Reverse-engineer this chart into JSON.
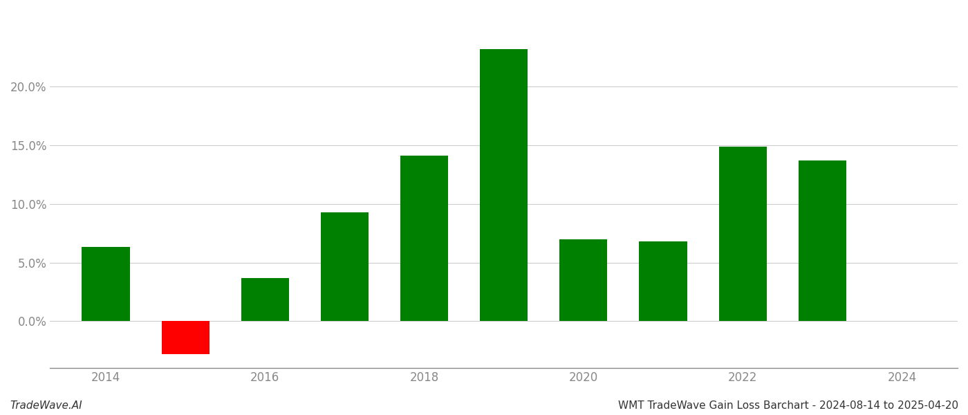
{
  "years": [
    2014,
    2015,
    2016,
    2017,
    2018,
    2019,
    2020,
    2021,
    2022,
    2023
  ],
  "values": [
    0.063,
    -0.028,
    0.037,
    0.093,
    0.141,
    0.232,
    0.07,
    0.068,
    0.149,
    0.137
  ],
  "colors": [
    "#008000",
    "#ff0000",
    "#008000",
    "#008000",
    "#008000",
    "#008000",
    "#008000",
    "#008000",
    "#008000",
    "#008000"
  ],
  "title": "WMT TradeWave Gain Loss Barchart - 2024-08-14 to 2025-04-20",
  "watermark": "TradeWave.AI",
  "ylim_min": -0.04,
  "ylim_max": 0.265,
  "xlim_min": 2013.3,
  "xlim_max": 2024.7,
  "background_color": "#ffffff",
  "grid_color": "#cccccc",
  "bar_width": 0.6,
  "title_fontsize": 11,
  "watermark_fontsize": 11,
  "tick_label_color": "#888888",
  "spine_color": "#888888",
  "x_tick_positions": [
    2014,
    2016,
    2018,
    2020,
    2022,
    2024
  ],
  "x_tick_labels": [
    "2014",
    "2016",
    "2018",
    "2020",
    "2022",
    "2024"
  ],
  "y_tick_values": [
    0.0,
    0.05,
    0.1,
    0.15,
    0.2
  ],
  "y_tick_labels": [
    "0.0%",
    "5.0%",
    "10.0%",
    "15.0%",
    "20.0%"
  ]
}
